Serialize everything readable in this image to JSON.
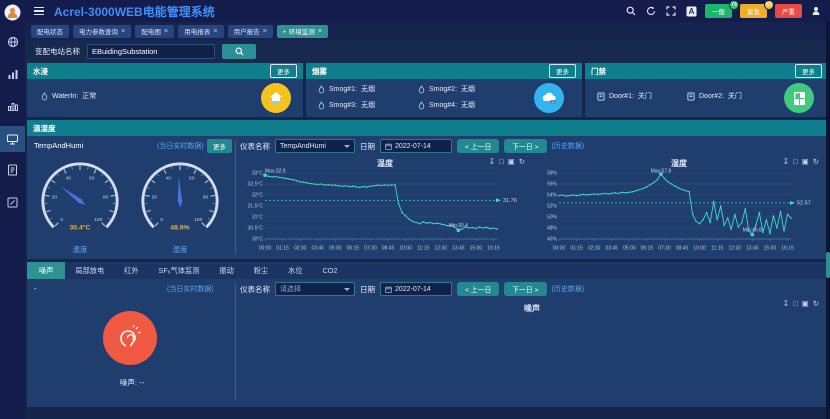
{
  "app": {
    "title": "Acrel-3000WEB电能管理系统"
  },
  "topbar": {
    "icons": [
      "search-icon",
      "refresh-icon",
      "fullscreen-icon",
      "font-size-icon",
      "user-icon"
    ],
    "alarms": [
      {
        "label": "一般",
        "count": "74",
        "color": "#1db56a",
        "badge_color": "#29cd7d"
      },
      {
        "label": "紧急",
        "count": "59",
        "color": "#f0ad2a",
        "badge_color": "#f5c335"
      },
      {
        "label": "严重",
        "count": "",
        "color": "#e84a44",
        "badge_color": ""
      }
    ]
  },
  "nav_tabs": [
    {
      "label": "配电状态",
      "closable": false,
      "active": false
    },
    {
      "label": "电力参数查询",
      "closable": true,
      "active": false
    },
    {
      "label": "配电图",
      "closable": true,
      "active": false
    },
    {
      "label": "用电报表",
      "closable": true,
      "active": false
    },
    {
      "label": "用户报告",
      "closable": true,
      "active": false
    },
    {
      "label": "环境监测",
      "closable": true,
      "active": true
    }
  ],
  "search": {
    "label": "变配电站名称",
    "value": "EBuidingSubstation"
  },
  "env_panels": {
    "water": {
      "title": "水浸",
      "more": "更多",
      "items": [
        {
          "name": "WaterIn:",
          "value": "正常"
        }
      ]
    },
    "smoke": {
      "title": "烟雾",
      "more": "更多",
      "items": [
        {
          "name": "Smog#1:",
          "value": "无烟"
        },
        {
          "name": "Smog#2:",
          "value": "无烟"
        },
        {
          "name": "Smog#3:",
          "value": "无烟"
        },
        {
          "name": "Smog#4:",
          "value": "无烟"
        }
      ]
    },
    "door": {
      "title": "门禁",
      "more": "更多",
      "items": [
        {
          "name": "Door#1:",
          "value": "关门"
        },
        {
          "name": "Door#2:",
          "value": "关门"
        }
      ]
    }
  },
  "temp_humi": {
    "title": "温湿度",
    "device": "TempAndHumi",
    "realtime_note": "(当日实时数据)",
    "more": "更多",
    "gauges": [
      {
        "value": 30.4,
        "display": "30.4°C",
        "label": "温度",
        "min": 0,
        "max": 100
      },
      {
        "value": 48.9,
        "display": "48.9%",
        "label": "湿度",
        "min": 0,
        "max": 100
      }
    ],
    "controls": {
      "meter_label": "仪表名称",
      "meter_value": "TempAndHumi",
      "date_label": "日期",
      "date_value": "2022-07-14",
      "prev": "< 上一日",
      "next": "下一日 >",
      "history": "(历史数据)"
    }
  },
  "noise": {
    "tabs": [
      "噪声",
      "局部放电",
      "红外",
      "SF₆气体监测",
      "振动",
      "粉尘",
      "水位",
      "CO2"
    ],
    "active_tab": "噪声",
    "device": "-",
    "realtime_note": "(当日实时数据)",
    "value_text": "噪声: --",
    "controls": {
      "meter_label": "仪表名称",
      "meter_value": "请选择",
      "date_label": "日期",
      "date_value": "2022-07-14",
      "prev": "< 上一日",
      "next": "下一日 >",
      "history": "(历史数据)"
    }
  },
  "colors": {
    "accent_teal": "#0f7f8e",
    "panel": "#1f3e6d",
    "line": "#3fd8ca",
    "link_blue": "#53a8f8",
    "value_yellow": "#e9b23c",
    "needle_blue": "#4a74dc",
    "icon_yellow": "#f6c21d",
    "icon_blue": "#31b5f0",
    "icon_green": "#3ecb7d",
    "icon_orange": "#f05a42"
  },
  "chart_data": [
    {
      "type": "line",
      "title": "温度",
      "unit": "°C",
      "ylim": [
        30,
        33
      ],
      "y_ticks": [
        "33°C",
        "32.5°C",
        "32°C",
        "31.5°C",
        "31°C",
        "30.5°C",
        "30°C"
      ],
      "x_ticks": [
        "00:00",
        "01:15",
        "02:30",
        "03:45",
        "05:00",
        "06:15",
        "07:30",
        "08:45",
        "10:00",
        "11:15",
        "12:30",
        "13:45",
        "15:00",
        "16:15"
      ],
      "x_tick_step": 5,
      "avg": {
        "label": "31.76",
        "value": 31.76
      },
      "max": {
        "label": "Max:32.9",
        "index": 0
      },
      "min": {
        "label": "Min:30.4",
        "index": 55
      },
      "values": [
        32.9,
        32.85,
        32.82,
        32.84,
        32.8,
        32.78,
        32.75,
        32.72,
        32.7,
        32.65,
        32.6,
        32.58,
        32.55,
        32.52,
        32.5,
        32.48,
        32.5,
        32.45,
        32.47,
        32.44,
        32.45,
        32.42,
        32.4,
        32.42,
        32.38,
        32.4,
        32.37,
        32.35,
        32.38,
        32.36,
        32.4,
        32.42,
        32.45,
        32.43,
        32.46,
        32.44,
        32.46,
        32.45,
        31.6,
        31.2,
        31.05,
        30.9,
        30.8,
        30.75,
        30.7,
        30.78,
        30.72,
        30.75,
        30.7,
        30.72,
        30.68,
        30.65,
        30.6,
        30.62,
        30.55,
        30.4,
        30.45,
        30.55,
        30.5,
        30.52,
        30.48,
        30.55,
        30.5,
        30.53,
        30.47,
        30.5,
        30.45
      ]
    },
    {
      "type": "line",
      "title": "湿度",
      "unit": "%",
      "ylim": [
        46,
        58
      ],
      "y_ticks": [
        "58%",
        "56%",
        "54%",
        "52%",
        "50%",
        "48%",
        "46%"
      ],
      "x_ticks": [
        "00:00",
        "01:15",
        "02:30",
        "03:45",
        "05:00",
        "06:15",
        "07:30",
        "08:45",
        "10:00",
        "11:15",
        "12:30",
        "13:45",
        "15:00",
        "16:15"
      ],
      "x_tick_step": 5,
      "avg": {
        "label": "52.57",
        "value": 52.57
      },
      "max": {
        "label": "Max:57.8",
        "index": 29
      },
      "min": {
        "label": "Min:46.8",
        "index": 55
      },
      "values": [
        53.9,
        54.0,
        53.8,
        53.9,
        54.0,
        53.9,
        54.0,
        54.1,
        54.0,
        54.1,
        54.2,
        54.1,
        54.2,
        54.3,
        54.2,
        54.3,
        54.4,
        54.3,
        54.5,
        54.4,
        54.5,
        54.6,
        54.8,
        55.0,
        55.2,
        55.5,
        55.9,
        56.3,
        56.8,
        57.8,
        57.0,
        56.4,
        56.0,
        55.6,
        55.3,
        55.0,
        54.8,
        54.6,
        50.5,
        49.2,
        48.8,
        49.5,
        50.8,
        49.0,
        52.8,
        49.5,
        52.0,
        48.5,
        49.8,
        47.8,
        50.5,
        48.2,
        49.0,
        51.5,
        47.5,
        46.8,
        48.5,
        50.8,
        47.2,
        49.5,
        47.0,
        50.2,
        48.0,
        51.0,
        47.5,
        50.5,
        49.8
      ]
    },
    {
      "type": "line",
      "title": "噪声",
      "unit": "",
      "ylim": null,
      "y_ticks": [],
      "x_ticks": [],
      "x_tick_step": 0,
      "values": []
    }
  ]
}
